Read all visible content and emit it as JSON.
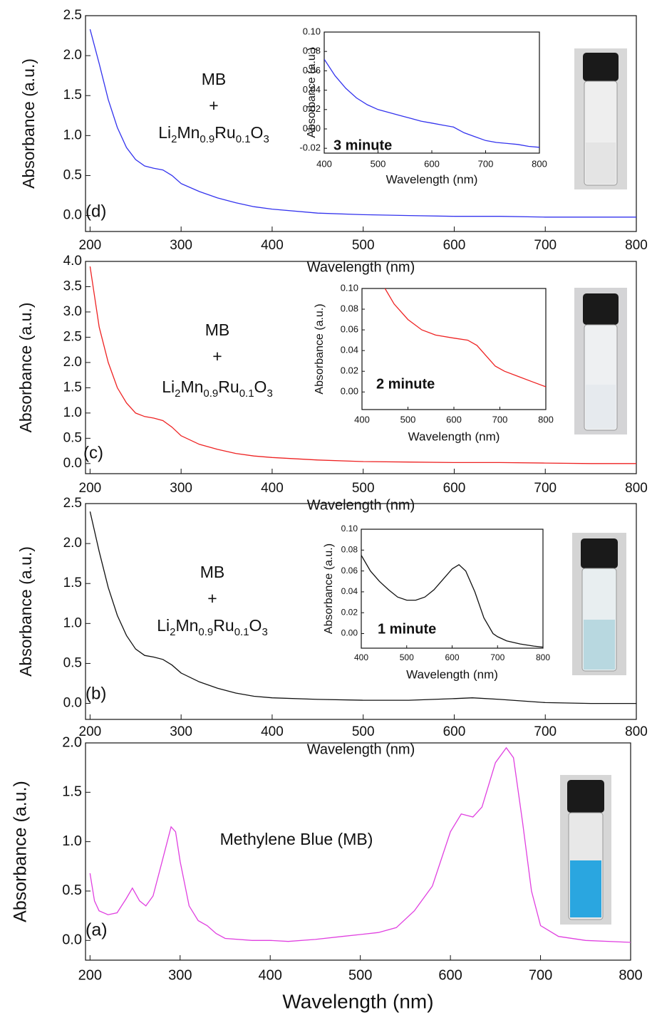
{
  "chart_data": [
    {
      "type": "line",
      "panel_label": "(d)",
      "text": [
        "MB",
        "+"
      ],
      "formula": [
        "Li",
        "2",
        "Mn",
        "0.9",
        "Ru",
        "0.1",
        "O",
        "3"
      ],
      "xlabel": "Wavelength (nm)",
      "ylabel": "Absorbance (a.u.)",
      "xlim": [
        195,
        800
      ],
      "ylim": [
        -0.2,
        2.5
      ],
      "xticks": [
        200,
        300,
        400,
        500,
        600,
        700,
        800
      ],
      "yticks": [
        {
          "value": 0,
          "label": "0.0"
        },
        0.5,
        {
          "value": 1,
          "label": "1.0"
        },
        1.5,
        {
          "value": 2,
          "label": "2.0"
        },
        2.5
      ],
      "x": [
        200,
        210,
        220,
        230,
        240,
        250,
        260,
        270,
        280,
        290,
        300,
        320,
        340,
        360,
        380,
        400,
        450,
        500,
        550,
        600,
        650,
        700,
        750,
        800
      ],
      "series": [
        {
          "color": "#3333ee",
          "values": [
            2.33,
            1.9,
            1.45,
            1.1,
            0.85,
            0.7,
            0.62,
            0.59,
            0.57,
            0.5,
            0.4,
            0.3,
            0.22,
            0.16,
            0.11,
            0.08,
            0.03,
            0.01,
            0.0,
            -0.01,
            -0.01,
            -0.02,
            -0.02,
            -0.02
          ]
        }
      ]
    },
    {
      "type": "line",
      "panel_label": "(c)",
      "text": [
        "MB",
        "+"
      ],
      "formula": [
        "Li",
        "2",
        "Mn",
        "0.9",
        "Ru",
        "0.1",
        "O",
        "3"
      ],
      "xlabel": "Wavelength (nm)",
      "ylabel": "Absorbance (a.u.)",
      "xlim": [
        195,
        800
      ],
      "ylim": [
        -0.2,
        4.0
      ],
      "xticks": [
        200,
        300,
        400,
        500,
        600,
        700,
        800
      ],
      "yticks": [
        {
          "value": 0,
          "label": "0.0"
        },
        0.5,
        {
          "value": 1,
          "label": "1.0"
        },
        1.5,
        {
          "value": 2,
          "label": "2.0"
        },
        2.5,
        {
          "value": 3,
          "label": "3.0"
        },
        3.5,
        {
          "value": 4,
          "label": "4.0"
        }
      ],
      "x": [
        200,
        205,
        210,
        220,
        230,
        240,
        250,
        260,
        270,
        280,
        290,
        300,
        320,
        340,
        360,
        380,
        400,
        450,
        500,
        550,
        600,
        650,
        700,
        750,
        800
      ],
      "series": [
        {
          "color": "#ee2222",
          "values": [
            3.9,
            3.3,
            2.7,
            2.0,
            1.5,
            1.2,
            1.0,
            0.93,
            0.9,
            0.85,
            0.72,
            0.55,
            0.38,
            0.28,
            0.2,
            0.15,
            0.12,
            0.07,
            0.04,
            0.03,
            0.02,
            0.02,
            0.01,
            0.0,
            0.0
          ]
        }
      ]
    },
    {
      "type": "line",
      "panel_label": "(b)",
      "text": [
        "MB",
        "+"
      ],
      "formula": [
        "Li",
        "2",
        "Mn",
        "0.9",
        "Ru",
        "0.1",
        "O",
        "3"
      ],
      "xlabel": "Wavelength (nm)",
      "ylabel": "Absorbance (a.u.)",
      "xlim": [
        195,
        800
      ],
      "ylim": [
        -0.2,
        2.5
      ],
      "xticks": [
        200,
        300,
        400,
        500,
        600,
        700,
        800
      ],
      "yticks": [
        {
          "value": 0,
          "label": "0.0"
        },
        0.5,
        {
          "value": 1,
          "label": "1.0"
        },
        1.5,
        {
          "value": 2,
          "label": "2.0"
        },
        2.5
      ],
      "x": [
        200,
        210,
        220,
        230,
        240,
        250,
        260,
        270,
        280,
        290,
        300,
        320,
        340,
        360,
        380,
        400,
        450,
        500,
        550,
        600,
        620,
        650,
        700,
        750,
        800
      ],
      "series": [
        {
          "color": "#111111",
          "values": [
            2.4,
            1.9,
            1.45,
            1.1,
            0.85,
            0.68,
            0.6,
            0.58,
            0.55,
            0.48,
            0.38,
            0.27,
            0.19,
            0.13,
            0.09,
            0.07,
            0.05,
            0.04,
            0.04,
            0.06,
            0.07,
            0.05,
            0.01,
            0.0,
            0.0
          ]
        }
      ]
    },
    {
      "type": "line",
      "panel_label": "(a)",
      "text": [
        "Methylene Blue (MB)"
      ],
      "xlabel": "Wavelength (nm)",
      "ylabel": "Absorbance (a.u.)",
      "xlim": [
        195,
        800
      ],
      "ylim": [
        -0.2,
        2.0
      ],
      "xticks": [
        200,
        300,
        400,
        500,
        600,
        700,
        800
      ],
      "yticks": [
        {
          "value": 0,
          "label": "0.0"
        },
        0.5,
        {
          "value": 1,
          "label": "1.0"
        },
        1.5,
        {
          "value": 2,
          "label": "2.0"
        }
      ],
      "x": [
        200,
        205,
        210,
        220,
        230,
        240,
        247,
        255,
        262,
        270,
        280,
        290,
        295,
        300,
        310,
        320,
        330,
        340,
        350,
        380,
        400,
        420,
        450,
        480,
        500,
        520,
        540,
        560,
        580,
        600,
        612,
        625,
        635,
        650,
        662,
        670,
        680,
        690,
        700,
        720,
        750,
        800
      ],
      "series": [
        {
          "color": "#e040e0",
          "values": [
            0.68,
            0.4,
            0.3,
            0.26,
            0.28,
            0.42,
            0.53,
            0.4,
            0.35,
            0.45,
            0.8,
            1.15,
            1.1,
            0.8,
            0.35,
            0.2,
            0.15,
            0.07,
            0.02,
            0.0,
            0.0,
            -0.01,
            0.01,
            0.04,
            0.06,
            0.08,
            0.13,
            0.3,
            0.55,
            1.1,
            1.28,
            1.25,
            1.35,
            1.8,
            1.95,
            1.85,
            1.2,
            0.5,
            0.15,
            0.04,
            0.0,
            -0.02
          ]
        }
      ]
    },
    {
      "type": "line",
      "text": [
        "3 minute"
      ],
      "xlabel": "Wavelength (nm)",
      "ylabel": "Absorbance (a.u.)",
      "xlim": [
        400,
        800
      ],
      "ylim": [
        -0.025,
        0.1
      ],
      "xticks": [
        400,
        500,
        600,
        700,
        800
      ],
      "yticks": [
        -0.02,
        {
          "value": 0,
          "label": "0.00"
        },
        0.02,
        0.04,
        0.06,
        0.08,
        {
          "value": 0.1,
          "label": "0.10"
        }
      ],
      "x": [
        400,
        420,
        440,
        460,
        480,
        500,
        520,
        540,
        560,
        580,
        600,
        620,
        640,
        660,
        680,
        700,
        720,
        740,
        760,
        780,
        800
      ],
      "series": [
        {
          "color": "#3333ee",
          "values": [
            0.072,
            0.055,
            0.042,
            0.032,
            0.025,
            0.02,
            0.017,
            0.014,
            0.011,
            0.008,
            0.006,
            0.004,
            0.002,
            -0.004,
            -0.008,
            -0.012,
            -0.014,
            -0.015,
            -0.016,
            -0.018,
            -0.019
          ]
        }
      ]
    },
    {
      "type": "line",
      "text": [
        "2 minute"
      ],
      "xlabel": "Wavelength (nm)",
      "ylabel": "Absorbance (a.u.)",
      "xlim": [
        400,
        800
      ],
      "ylim": [
        -0.017,
        0.1
      ],
      "xticks": [
        400,
        500,
        600,
        700,
        800
      ],
      "yticks": [
        {
          "value": 0,
          "label": "0.00"
        },
        0.02,
        0.04,
        0.06,
        0.08,
        {
          "value": 0.1,
          "label": "0.10"
        }
      ],
      "x": [
        450,
        470,
        500,
        530,
        560,
        600,
        630,
        650,
        670,
        690,
        710,
        740,
        770,
        800
      ],
      "series": [
        {
          "color": "#ee2222",
          "values": [
            0.1,
            0.085,
            0.07,
            0.06,
            0.055,
            0.052,
            0.05,
            0.045,
            0.035,
            0.025,
            0.02,
            0.015,
            0.01,
            0.005
          ]
        }
      ]
    },
    {
      "type": "line",
      "text": [
        "1 minute"
      ],
      "xlabel": "Wavelength (nm)",
      "ylabel": "Absorbance (a.u.)",
      "xlim": [
        400,
        800
      ],
      "ylim": [
        -0.014,
        0.1
      ],
      "xticks": [
        400,
        500,
        600,
        700,
        800
      ],
      "yticks": [
        {
          "value": 0,
          "label": "0.00"
        },
        0.02,
        0.04,
        0.06,
        0.08,
        {
          "value": 0.1,
          "label": "0.10"
        }
      ],
      "x": [
        400,
        420,
        440,
        460,
        480,
        500,
        520,
        540,
        560,
        580,
        600,
        615,
        630,
        650,
        670,
        690,
        700,
        720,
        750,
        780,
        800
      ],
      "series": [
        {
          "color": "#111111",
          "values": [
            0.075,
            0.06,
            0.05,
            0.042,
            0.035,
            0.032,
            0.032,
            0.035,
            0.042,
            0.052,
            0.062,
            0.066,
            0.06,
            0.04,
            0.015,
            0.0,
            -0.003,
            -0.007,
            -0.01,
            -0.012,
            -0.013
          ]
        }
      ]
    }
  ]
}
